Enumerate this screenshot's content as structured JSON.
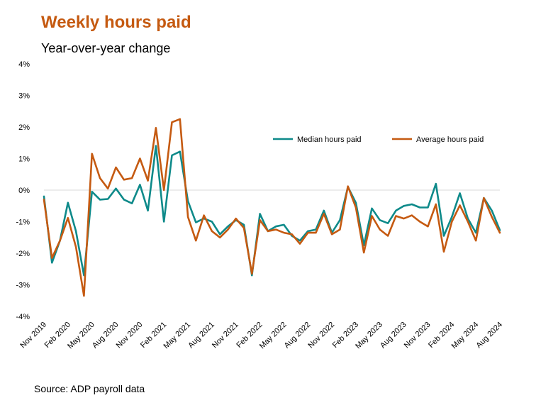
{
  "chart_data": {
    "type": "line",
    "title": "Weekly hours paid",
    "subtitle": "Year-over-year change",
    "source": "Source: ADP payroll data",
    "ylim": [
      -4,
      4
    ],
    "y_ticks": [
      "4%",
      "3%",
      "2%",
      "1%",
      "0%",
      "-1%",
      "-2%",
      "-3%",
      "-4%"
    ],
    "y_tick_values": [
      4,
      3,
      2,
      1,
      0,
      -1,
      -2,
      -3,
      -4
    ],
    "x_tick_labels": [
      "Nov 2019",
      "Feb 2020",
      "May 2020",
      "Aug 2020",
      "Nov 2020",
      "Feb 2021",
      "May 2021",
      "Aug 2021",
      "Nov 2021",
      "Feb 2022",
      "May 2022",
      "Aug 2022",
      "Nov 2022",
      "Feb 2023",
      "May 2023",
      "Aug 2023",
      "Nov 2023",
      "Feb 2024",
      "May 2024",
      "Aug 2024"
    ],
    "x_tick_label_indices": [
      0,
      3,
      6,
      9,
      12,
      15,
      18,
      21,
      24,
      27,
      30,
      33,
      36,
      39,
      42,
      45,
      48,
      51,
      54,
      57
    ],
    "legend_position": "top-right",
    "grid": false,
    "zero_line": true,
    "series": [
      {
        "name": "Median hours paid",
        "color": "#0e8a8a",
        "values": [
          -0.2,
          -2.3,
          -1.6,
          -0.4,
          -1.3,
          -2.7,
          -0.05,
          -0.3,
          -0.28,
          0.05,
          -0.3,
          -0.42,
          0.17,
          -0.65,
          1.4,
          -1.0,
          1.1,
          1.22,
          -0.35,
          -1.02,
          -0.9,
          -1.0,
          -1.4,
          -1.15,
          -0.95,
          -1.1,
          -2.7,
          -0.75,
          -1.3,
          -1.15,
          -1.1,
          -1.45,
          -1.6,
          -1.3,
          -1.25,
          -0.65,
          -1.35,
          -0.95,
          0.1,
          -0.4,
          -1.75,
          -0.58,
          -0.95,
          -1.05,
          -0.65,
          -0.5,
          -0.45,
          -0.55,
          -0.55,
          0.2,
          -1.45,
          -0.85,
          -0.1,
          -0.9,
          -1.35,
          -0.25,
          -0.65,
          -1.27
        ]
      },
      {
        "name": "Average hours paid",
        "color": "#c55a11",
        "values": [
          -0.3,
          -2.15,
          -1.6,
          -0.88,
          -1.8,
          -3.35,
          1.15,
          0.38,
          0.05,
          0.72,
          0.33,
          0.38,
          1.0,
          0.3,
          1.97,
          0.0,
          2.15,
          2.25,
          -0.85,
          -1.6,
          -0.8,
          -1.3,
          -1.5,
          -1.25,
          -0.9,
          -1.2,
          -2.65,
          -0.95,
          -1.3,
          -1.25,
          -1.35,
          -1.4,
          -1.7,
          -1.35,
          -1.35,
          -0.75,
          -1.4,
          -1.25,
          0.12,
          -0.55,
          -1.98,
          -0.82,
          -1.25,
          -1.45,
          -0.82,
          -0.9,
          -0.8,
          -1.0,
          -1.15,
          -0.45,
          -1.95,
          -1.0,
          -0.48,
          -1.0,
          -1.6,
          -0.25,
          -0.85,
          -1.35
        ]
      }
    ]
  }
}
